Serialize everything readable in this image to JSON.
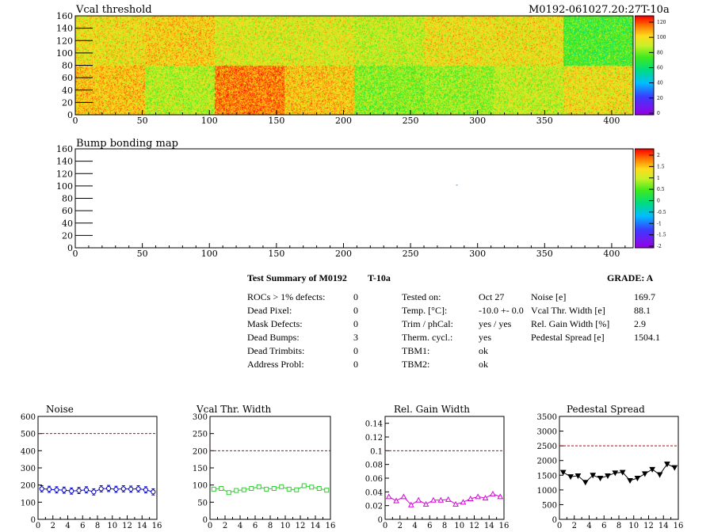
{
  "maps": [
    {
      "title": "Vcal threshold",
      "run_label": "M0192-061027.20:27T-10a",
      "x_ticks": [
        0,
        50,
        100,
        150,
        200,
        250,
        300,
        350,
        400
      ],
      "y_ticks": [
        0,
        20,
        40,
        60,
        80,
        100,
        120,
        140,
        160
      ],
      "xlim": [
        0,
        416
      ],
      "ylim": [
        0,
        160
      ],
      "palette_ticks": [
        "120",
        "100",
        "80",
        "60",
        "40",
        "20",
        "0"
      ],
      "palette_range": [
        0,
        130
      ],
      "roc_values_top": [
        100,
        104,
        96,
        96,
        92,
        100,
        100,
        76
      ],
      "roc_values_bottom": [
        106,
        90,
        116,
        106,
        84,
        86,
        92,
        100
      ]
    },
    {
      "title": "Bump bonding map",
      "x_ticks": [
        0,
        50,
        100,
        150,
        200,
        250,
        300,
        350,
        400
      ],
      "y_ticks": [
        0,
        20,
        40,
        60,
        80,
        100,
        120,
        140,
        160
      ],
      "xlim": [
        0,
        416
      ],
      "ylim": [
        0,
        160
      ],
      "palette_ticks": [
        "2",
        "1.5",
        "1",
        "0.5",
        "0",
        "-0.5",
        "-1",
        "-1.5",
        "-2"
      ],
      "palette_range": [
        -2,
        2
      ],
      "marks": [
        {
          "x": 284,
          "y": 102
        }
      ]
    }
  ],
  "summary": {
    "title": "Test Summary of M0192",
    "temp_label": "T-10a",
    "grade": "GRADE:  A",
    "defects": [
      {
        "label": "ROCs > 1% defects:",
        "value": "0"
      },
      {
        "label": "Dead Pixel:",
        "value": "0"
      },
      {
        "label": "Mask Defects:",
        "value": "0"
      },
      {
        "label": "Dead Bumps:",
        "value": "3"
      },
      {
        "label": "Dead Trimbits:",
        "value": "0"
      },
      {
        "label": "Address Probl:",
        "value": "0"
      }
    ],
    "conditions": [
      {
        "label": "Tested on:",
        "value": "Oct 27"
      },
      {
        "label": "Temp. [°C]:",
        "value": "-10.0 +- 0.0"
      },
      {
        "label": "Trim / phCal:",
        "value": "yes / yes"
      },
      {
        "label": "Therm. cycl.:",
        "value": "yes"
      },
      {
        "label": "TBM1:",
        "value": "ok"
      },
      {
        "label": "TBM2:",
        "value": "ok"
      }
    ],
    "measurements": [
      {
        "label": "Noise [e]",
        "value": "169.7"
      },
      {
        "label": "Vcal Thr. Width [e]",
        "value": "88.1"
      },
      {
        "label": "Rel. Gain Width [%]",
        "value": "2.9"
      },
      {
        "label": "Pedestal Spread [e]",
        "value": "1504.1"
      }
    ]
  },
  "chart_data": [
    {
      "type": "scatter",
      "title": "Noise",
      "x": [
        0,
        1,
        2,
        3,
        4,
        5,
        6,
        7,
        8,
        9,
        10,
        11,
        12,
        13,
        14,
        15
      ],
      "values": [
        178,
        175,
        172,
        170,
        165,
        168,
        172,
        160,
        178,
        180,
        175,
        178,
        176,
        178,
        172,
        160
      ],
      "errors": [
        18,
        18,
        18,
        18,
        18,
        18,
        18,
        18,
        18,
        18,
        18,
        18,
        18,
        18,
        18,
        18
      ],
      "xlim": [
        0,
        16
      ],
      "ylim": [
        0,
        600
      ],
      "x_ticks": [
        0,
        2,
        4,
        6,
        8,
        10,
        12,
        14,
        16
      ],
      "y_ticks": [
        0,
        100,
        200,
        300,
        400,
        500,
        600
      ],
      "y_tick_labels": [
        "0",
        "100",
        "200",
        "300",
        "400",
        "500",
        "600"
      ],
      "threshold": 500,
      "color": "#0000cc",
      "marker": "circle"
    },
    {
      "type": "scatter",
      "title": "Vcal Thr. Width",
      "x": [
        0,
        1,
        2,
        3,
        4,
        5,
        6,
        7,
        8,
        9,
        10,
        11,
        12,
        13,
        14,
        15
      ],
      "values": [
        88,
        90,
        78,
        84,
        86,
        90,
        95,
        88,
        90,
        95,
        88,
        86,
        98,
        94,
        90,
        85
      ],
      "xlim": [
        0,
        16
      ],
      "ylim": [
        0,
        300
      ],
      "x_ticks": [
        0,
        2,
        4,
        6,
        8,
        10,
        12,
        14,
        16
      ],
      "y_ticks": [
        0,
        50,
        100,
        150,
        200,
        250,
        300
      ],
      "y_tick_labels": [
        "0",
        "50",
        "100",
        "150",
        "200",
        "250",
        "300"
      ],
      "threshold": 200,
      "color": "#33cc33",
      "marker": "square"
    },
    {
      "type": "scatter",
      "title": "Rel. Gain Width",
      "x": [
        0,
        1,
        2,
        3,
        4,
        5,
        6,
        7,
        8,
        9,
        10,
        11,
        12,
        13,
        14,
        15
      ],
      "values": [
        0.033,
        0.027,
        0.033,
        0.021,
        0.028,
        0.022,
        0.028,
        0.028,
        0.029,
        0.022,
        0.025,
        0.03,
        0.033,
        0.031,
        0.037,
        0.033
      ],
      "xlim": [
        0,
        16
      ],
      "ylim": [
        0,
        0.15
      ],
      "x_ticks": [
        0,
        2,
        4,
        6,
        8,
        10,
        12,
        14,
        16
      ],
      "y_ticks": [
        0,
        0.02,
        0.04,
        0.06,
        0.08,
        0.1,
        0.12,
        0.14
      ],
      "y_tick_labels": [
        "0",
        "0.02",
        "0.04",
        "0.06",
        "0.08",
        "0.1",
        "0.12",
        "0.14"
      ],
      "threshold": 0.1,
      "color": "#dd00dd",
      "marker": "triangle-up"
    },
    {
      "type": "scatter",
      "title": "Pedestal Spread",
      "x": [
        0,
        1,
        2,
        3,
        4,
        5,
        6,
        7,
        8,
        9,
        10,
        11,
        12,
        13,
        14,
        15
      ],
      "values": [
        1600,
        1450,
        1480,
        1260,
        1500,
        1400,
        1480,
        1580,
        1600,
        1320,
        1400,
        1550,
        1700,
        1520,
        1880,
        1760
      ],
      "xlim": [
        0,
        16
      ],
      "ylim": [
        0,
        3500
      ],
      "x_ticks": [
        0,
        2,
        4,
        6,
        8,
        10,
        12,
        14,
        16
      ],
      "y_ticks": [
        0,
        500,
        1000,
        1500,
        2000,
        2500,
        3000,
        3500
      ],
      "y_tick_labels": [
        "0",
        "500",
        "1000",
        "1500",
        "2000",
        "2500",
        "3000",
        "3500"
      ],
      "threshold": 2500,
      "color": "#000000",
      "marker": "triangle-down"
    }
  ]
}
